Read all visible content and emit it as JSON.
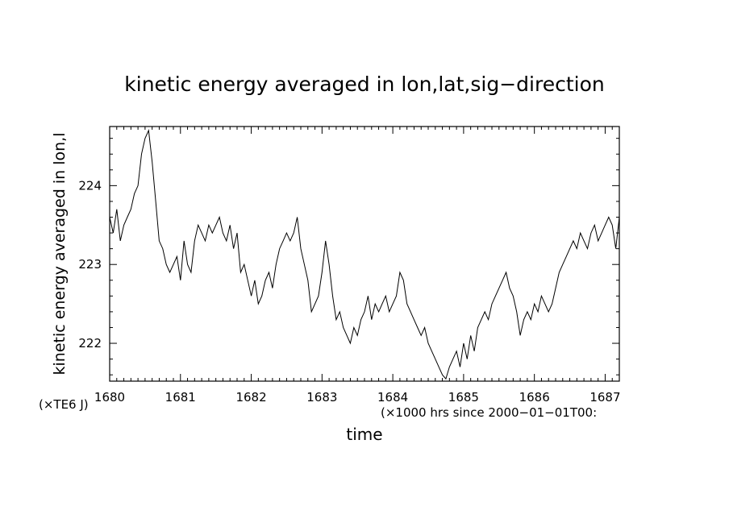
{
  "chart_data": {
    "type": "line",
    "title": "kinetic energy averaged in lon,lat,sig−direction",
    "xlabel": "time",
    "x_unit_label": "(×1000 hrs  since 2000−01−01T00:",
    "ylabel": "kinetic energy averaged in lon,l",
    "y_unit_label": "(×TE6 J)",
    "xlim": [
      1680,
      1687.2
    ],
    "ylim": [
      221.52,
      224.75
    ],
    "x_ticks": [
      1680,
      1681,
      1682,
      1683,
      1684,
      1685,
      1686,
      1687
    ],
    "x_tick_labels": [
      "1680",
      "1681",
      "1682",
      "1683",
      "1684",
      "1685",
      "1686",
      "1687"
    ],
    "y_ticks": [
      222,
      223,
      224
    ],
    "y_tick_labels": [
      "222",
      "223",
      "224"
    ],
    "grid": false,
    "line_color": "#000000",
    "series": [
      {
        "x": [
          1680.0,
          1680.05,
          1680.1,
          1680.15,
          1680.2,
          1680.25,
          1680.3,
          1680.35,
          1680.4,
          1680.45,
          1680.5,
          1680.55,
          1680.6,
          1680.65,
          1680.7,
          1680.75,
          1680.8,
          1680.85,
          1680.9,
          1680.95,
          1681.0,
          1681.05,
          1681.1,
          1681.15,
          1681.2,
          1681.25,
          1681.3,
          1681.35,
          1681.4,
          1681.45,
          1681.5,
          1681.55,
          1681.6,
          1681.65,
          1681.7,
          1681.75,
          1681.8,
          1681.85,
          1681.9,
          1681.95,
          1682.0,
          1682.05,
          1682.1,
          1682.15,
          1682.2,
          1682.25,
          1682.3,
          1682.35,
          1682.4,
          1682.45,
          1682.5,
          1682.55,
          1682.6,
          1682.65,
          1682.7,
          1682.75,
          1682.8,
          1682.85,
          1682.9,
          1682.95,
          1683.0,
          1683.05,
          1683.1,
          1683.15,
          1683.2,
          1683.25,
          1683.3,
          1683.35,
          1683.4,
          1683.45,
          1683.5,
          1683.55,
          1683.6,
          1683.65,
          1683.7,
          1683.75,
          1683.8,
          1683.85,
          1683.9,
          1683.95,
          1684.0,
          1684.05,
          1684.1,
          1684.15,
          1684.2,
          1684.25,
          1684.3,
          1684.35,
          1684.4,
          1684.45,
          1684.5,
          1684.55,
          1684.6,
          1684.65,
          1684.7,
          1684.75,
          1684.8,
          1684.85,
          1684.9,
          1684.95,
          1685.0,
          1685.05,
          1685.1,
          1685.15,
          1685.2,
          1685.25,
          1685.3,
          1685.35,
          1685.4,
          1685.45,
          1685.5,
          1685.55,
          1685.6,
          1685.65,
          1685.7,
          1685.75,
          1685.8,
          1685.85,
          1685.9,
          1685.95,
          1686.0,
          1686.05,
          1686.1,
          1686.15,
          1686.2,
          1686.25,
          1686.3,
          1686.35,
          1686.4,
          1686.45,
          1686.5,
          1686.55,
          1686.6,
          1686.65,
          1686.7,
          1686.75,
          1686.8,
          1686.85,
          1686.9,
          1686.95,
          1687.0,
          1687.05,
          1687.1,
          1687.15,
          1687.2
        ],
        "y": [
          223.6,
          223.4,
          223.7,
          223.3,
          223.5,
          223.6,
          223.7,
          223.9,
          224.0,
          224.4,
          224.6,
          224.7,
          224.3,
          223.8,
          223.3,
          223.2,
          223.0,
          222.9,
          223.0,
          223.1,
          222.8,
          223.3,
          223.0,
          222.9,
          223.3,
          223.5,
          223.4,
          223.3,
          223.5,
          223.4,
          223.5,
          223.6,
          223.4,
          223.3,
          223.5,
          223.2,
          223.4,
          222.9,
          223.0,
          222.8,
          222.6,
          222.8,
          222.5,
          222.6,
          222.8,
          222.9,
          222.7,
          223.0,
          223.2,
          223.3,
          223.4,
          223.3,
          223.4,
          223.6,
          223.2,
          223.0,
          222.8,
          222.4,
          222.5,
          222.6,
          222.9,
          223.3,
          223.0,
          222.6,
          222.3,
          222.4,
          222.2,
          222.1,
          222.0,
          222.2,
          222.1,
          222.3,
          222.4,
          222.6,
          222.3,
          222.5,
          222.4,
          222.5,
          222.6,
          222.4,
          222.5,
          222.6,
          222.9,
          222.8,
          222.5,
          222.4,
          222.3,
          222.2,
          222.1,
          222.2,
          222.0,
          221.9,
          221.8,
          221.7,
          221.6,
          221.55,
          221.7,
          221.8,
          221.9,
          221.7,
          222.0,
          221.8,
          222.1,
          221.9,
          222.2,
          222.3,
          222.4,
          222.3,
          222.5,
          222.6,
          222.7,
          222.8,
          222.9,
          222.7,
          222.6,
          222.4,
          222.1,
          222.3,
          222.4,
          222.3,
          222.5,
          222.4,
          222.6,
          222.5,
          222.4,
          222.5,
          222.7,
          222.9,
          223.0,
          223.1,
          223.2,
          223.3,
          223.2,
          223.4,
          223.3,
          223.2,
          223.4,
          223.5,
          223.3,
          223.4,
          223.5,
          223.6,
          223.5,
          223.2,
          223.6
        ]
      }
    ]
  }
}
